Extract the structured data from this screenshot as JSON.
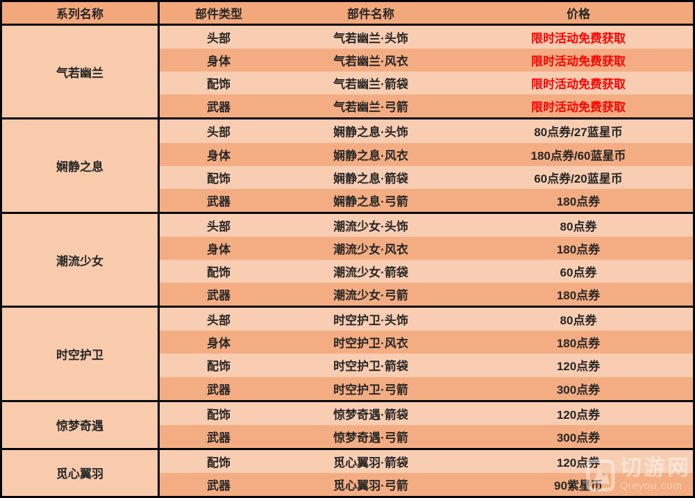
{
  "chart_data": {
    "type": "table",
    "title": "",
    "columns": [
      "系列名称",
      "部件类型",
      "部件名称",
      "价格"
    ],
    "rows": [
      [
        "气若幽兰",
        "头部",
        "气若幽兰·头饰",
        "限时活动免费获取"
      ],
      [
        "气若幽兰",
        "身体",
        "气若幽兰·风衣",
        "限时活动免费获取"
      ],
      [
        "气若幽兰",
        "配饰",
        "气若幽兰·箭袋",
        "限时活动免费获取"
      ],
      [
        "气若幽兰",
        "武器",
        "气若幽兰·弓箭",
        "限时活动免费获取"
      ],
      [
        "娴静之息",
        "头部",
        "娴静之息·头饰",
        "80点券/27蓝星币"
      ],
      [
        "娴静之息",
        "身体",
        "娴静之息·风衣",
        "180点券/60蓝星币"
      ],
      [
        "娴静之息",
        "配饰",
        "娴静之息·箭袋",
        "60点券/20蓝星币"
      ],
      [
        "娴静之息",
        "武器",
        "娴静之息·弓箭",
        "180点券"
      ],
      [
        "潮流少女",
        "头部",
        "潮流少女·头饰",
        "80点券"
      ],
      [
        "潮流少女",
        "身体",
        "潮流少女·风衣",
        "180点券"
      ],
      [
        "潮流少女",
        "配饰",
        "潮流少女·箭袋",
        "60点券"
      ],
      [
        "潮流少女",
        "武器",
        "潮流少女·弓箭",
        "180点券"
      ],
      [
        "时空护卫",
        "头部",
        "时空护卫·头饰",
        "80点券"
      ],
      [
        "时空护卫",
        "身体",
        "时空护卫·风衣",
        "180点券"
      ],
      [
        "时空护卫",
        "配饰",
        "时空护卫·箭袋",
        "120点券"
      ],
      [
        "时空护卫",
        "武器",
        "时空护卫·弓箭",
        "300点券"
      ],
      [
        "惊梦奇遇",
        "配饰",
        "惊梦奇遇·箭袋",
        "120点券"
      ],
      [
        "惊梦奇遇",
        "武器",
        "惊梦奇遇·弓箭",
        "300点券"
      ],
      [
        "觅心翼羽",
        "配饰",
        "觅心翼羽·箭袋",
        "120点券"
      ],
      [
        "觅心翼羽",
        "武器",
        "觅心翼羽·弓箭",
        "90紫星币"
      ]
    ]
  },
  "table": {
    "headers": [
      "系列名称",
      "部件类型",
      "部件名称",
      "价格"
    ],
    "groups": [
      {
        "series": "气若幽兰",
        "rows": [
          {
            "part_type": "头部",
            "part_name": "气若幽兰·头饰",
            "price": "限时活动免费获取",
            "price_highlight": true
          },
          {
            "part_type": "身体",
            "part_name": "气若幽兰·风衣",
            "price": "限时活动免费获取",
            "price_highlight": true
          },
          {
            "part_type": "配饰",
            "part_name": "气若幽兰·箭袋",
            "price": "限时活动免费获取",
            "price_highlight": true
          },
          {
            "part_type": "武器",
            "part_name": "气若幽兰·弓箭",
            "price": "限时活动免费获取",
            "price_highlight": true
          }
        ]
      },
      {
        "series": "娴静之息",
        "rows": [
          {
            "part_type": "头部",
            "part_name": "娴静之息·头饰",
            "price": "80点券/27蓝星币",
            "price_highlight": false
          },
          {
            "part_type": "身体",
            "part_name": "娴静之息·风衣",
            "price": "180点券/60蓝星币",
            "price_highlight": false
          },
          {
            "part_type": "配饰",
            "part_name": "娴静之息·箭袋",
            "price": "60点券/20蓝星币",
            "price_highlight": false
          },
          {
            "part_type": "武器",
            "part_name": "娴静之息·弓箭",
            "price": "180点券",
            "price_highlight": false
          }
        ]
      },
      {
        "series": "潮流少女",
        "rows": [
          {
            "part_type": "头部",
            "part_name": "潮流少女·头饰",
            "price": "80点券",
            "price_highlight": false
          },
          {
            "part_type": "身体",
            "part_name": "潮流少女·风衣",
            "price": "180点券",
            "price_highlight": false
          },
          {
            "part_type": "配饰",
            "part_name": "潮流少女·箭袋",
            "price": "60点券",
            "price_highlight": false
          },
          {
            "part_type": "武器",
            "part_name": "潮流少女·弓箭",
            "price": "180点券",
            "price_highlight": false
          }
        ]
      },
      {
        "series": "时空护卫",
        "rows": [
          {
            "part_type": "头部",
            "part_name": "时空护卫·头饰",
            "price": "80点券",
            "price_highlight": false
          },
          {
            "part_type": "身体",
            "part_name": "时空护卫·风衣",
            "price": "180点券",
            "price_highlight": false
          },
          {
            "part_type": "配饰",
            "part_name": "时空护卫·箭袋",
            "price": "120点券",
            "price_highlight": false
          },
          {
            "part_type": "武器",
            "part_name": "时空护卫·弓箭",
            "price": "300点券",
            "price_highlight": false
          }
        ]
      },
      {
        "series": "惊梦奇遇",
        "rows": [
          {
            "part_type": "配饰",
            "part_name": "惊梦奇遇·箭袋",
            "price": "120点券",
            "price_highlight": false
          },
          {
            "part_type": "武器",
            "part_name": "惊梦奇遇·弓箭",
            "price": "300点券",
            "price_highlight": false
          }
        ]
      },
      {
        "series": "觅心翼羽",
        "rows": [
          {
            "part_type": "配饰",
            "part_name": "觅心翼羽·箭袋",
            "price": "120点券",
            "price_highlight": false
          },
          {
            "part_type": "武器",
            "part_name": "觅心翼羽·弓箭",
            "price": "90紫星币",
            "price_highlight": false
          }
        ]
      }
    ]
  },
  "watermark": {
    "site_name": "切游网",
    "site_url": "Qieyou.com",
    "logo_icon": "qieyou-logo-icon"
  },
  "colors": {
    "header_bg": "#f3a87b",
    "row_light_bg": "#f8cdb2",
    "row_dark_bg": "#f4ad82",
    "series_cell_bg": "#f7cbac",
    "border": "#050505",
    "text": "#262626",
    "price_highlight": "#ff0000"
  }
}
